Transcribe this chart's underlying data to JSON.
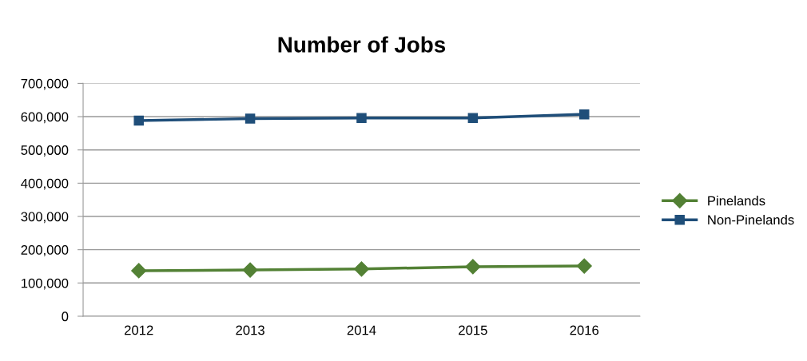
{
  "chart_data": {
    "type": "line",
    "title": "Number of Jobs",
    "categories": [
      "2012",
      "2013",
      "2014",
      "2015",
      "2016"
    ],
    "series": [
      {
        "name": "Pinelands",
        "color": "#538135",
        "marker": "diamond",
        "values": [
          137000,
          139000,
          142000,
          149000,
          151000
        ]
      },
      {
        "name": "Non-Pinelands",
        "color": "#1f4e79",
        "marker": "square",
        "values": [
          588000,
          594000,
          596000,
          596000,
          607000
        ]
      }
    ],
    "ylim": [
      0,
      700000
    ],
    "yticks": [
      {
        "value": 0,
        "label": "0"
      },
      {
        "value": 100000,
        "label": "100,000"
      },
      {
        "value": 200000,
        "label": "200,000"
      },
      {
        "value": 300000,
        "label": "300,000"
      },
      {
        "value": 400000,
        "label": "400,000"
      },
      {
        "value": 500000,
        "label": "500,000"
      },
      {
        "value": 600000,
        "label": "600,000"
      },
      {
        "value": 700000,
        "label": "700,000"
      }
    ],
    "grid": "y",
    "legend": "right",
    "line_style": "solid"
  }
}
